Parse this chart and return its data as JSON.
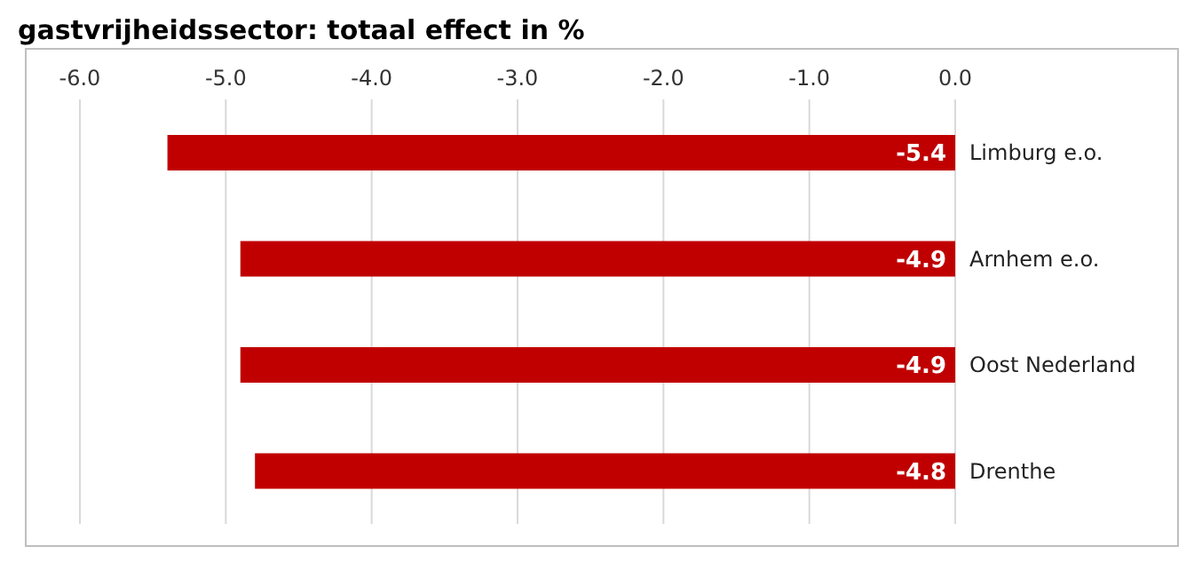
{
  "chart_data": {
    "type": "bar",
    "orientation": "horizontal",
    "title": "gastvrijheidssector: totaal effect in %",
    "categories": [
      "Limburg e.o.",
      "Arnhem e.o.",
      "Oost Nederland",
      "Drenthe"
    ],
    "values": [
      -5.4,
      -4.9,
      -4.9,
      -4.8
    ],
    "color": "#c00000",
    "xlim": [
      -6,
      0
    ],
    "xticks": [
      {
        "value": -6,
        "label": "-6.0"
      },
      {
        "value": -5,
        "label": "-5.0"
      },
      {
        "value": -4,
        "label": "-4.0"
      },
      {
        "value": -3,
        "label": "-3.0"
      },
      {
        "value": -2,
        "label": "-2.0"
      },
      {
        "value": -1,
        "label": "-1.0"
      },
      {
        "value": 0,
        "label": "0.0"
      }
    ],
    "grid": "x",
    "data_labels": true
  }
}
